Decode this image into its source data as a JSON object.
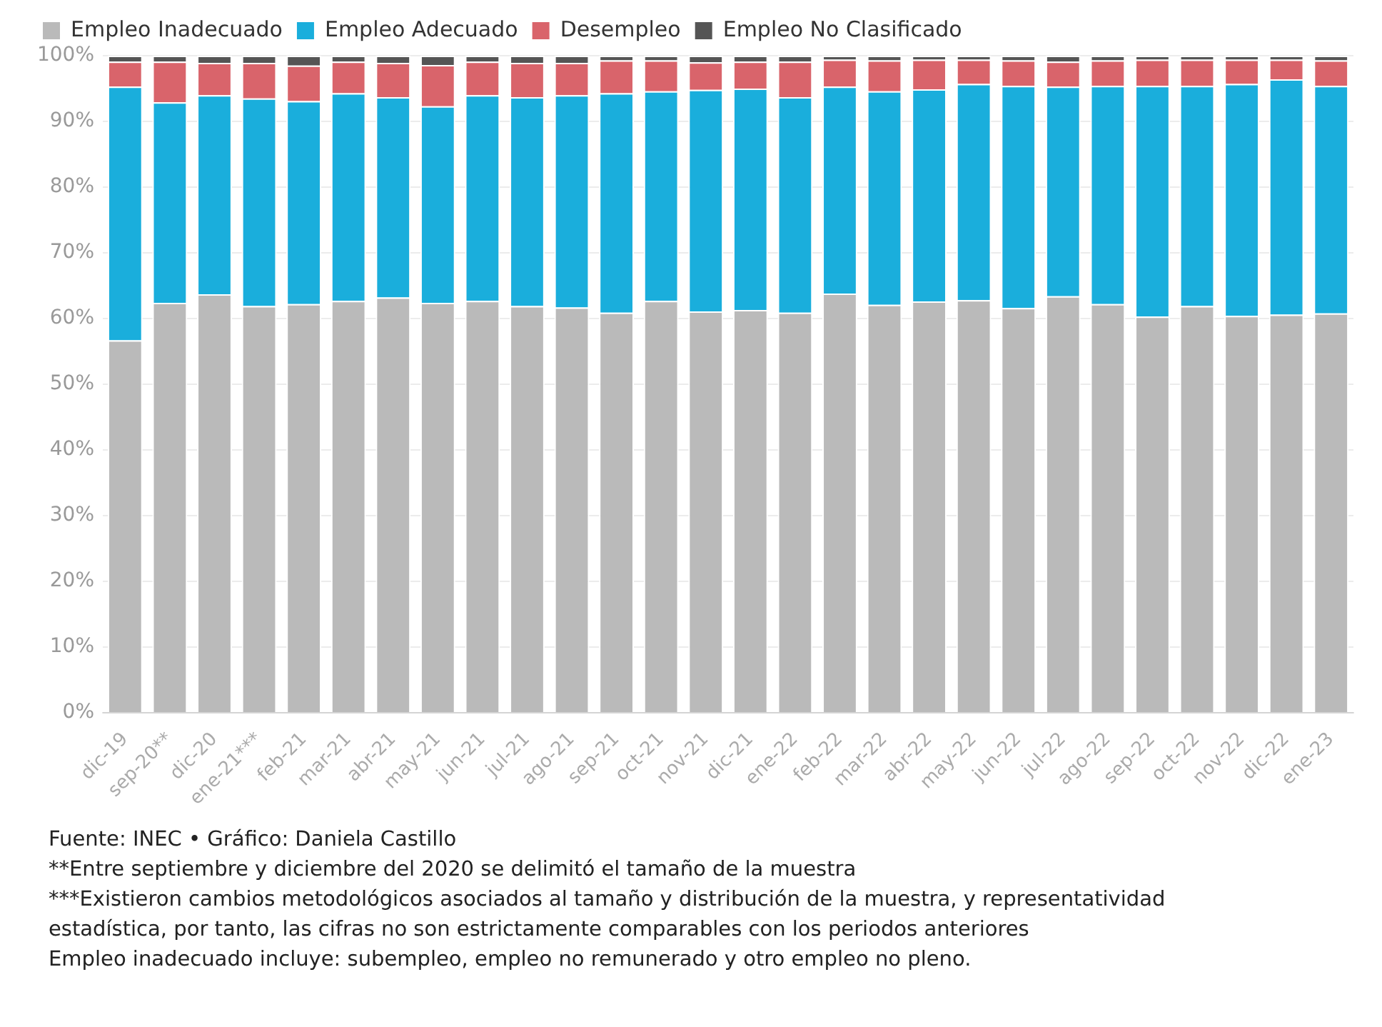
{
  "chart_data": {
    "type": "bar",
    "stacked": true,
    "legend": "top left",
    "grid": "y",
    "categories": [
      "dic-19",
      "sep-20**",
      "dic-20",
      "ene-21***",
      "feb-21",
      "mar-21",
      "abr-21",
      "may-21",
      "jun-21",
      "jul-21",
      "ago-21",
      "sep-21",
      "oct-21",
      "nov-21",
      "dic-21",
      "ene-22",
      "feb-22",
      "mar-22",
      "abr-22",
      "may-22",
      "jun-22",
      "jul-22",
      "ago-22",
      "sep-22",
      "oct-22",
      "nov-22",
      "dic-22",
      "ene-23"
    ],
    "ylim": [
      0,
      100
    ],
    "yticks": [
      {
        "value": 0,
        "label": "0%"
      },
      {
        "value": 10,
        "label": "10%"
      },
      {
        "value": 20,
        "label": "20%"
      },
      {
        "value": 30,
        "label": "30%"
      },
      {
        "value": 40,
        "label": "40%"
      },
      {
        "value": 50,
        "label": "50%"
      },
      {
        "value": 60,
        "label": "60%"
      },
      {
        "value": 70,
        "label": "70%"
      },
      {
        "value": 80,
        "label": "80%"
      },
      {
        "value": 90,
        "label": "90%"
      },
      {
        "value": 100,
        "label": "100%"
      }
    ],
    "series": [
      {
        "name": "Empleo Inadecuado",
        "color": "#bababa",
        "values": [
          56.7,
          62.4,
          63.7,
          61.9,
          62.2,
          62.7,
          63.2,
          62.4,
          62.7,
          61.9,
          61.7,
          60.9,
          62.7,
          61.1,
          61.3,
          60.9,
          63.8,
          62.1,
          62.6,
          62.8,
          61.6,
          63.4,
          62.2,
          60.3,
          61.9,
          60.4,
          60.6,
          60.8
        ]
      },
      {
        "name": "Empleo Adecuado",
        "color": "#1aaedc",
        "values": [
          38.6,
          30.5,
          30.3,
          31.6,
          30.9,
          31.6,
          30.5,
          29.9,
          31.3,
          31.8,
          32.3,
          33.4,
          31.9,
          33.7,
          33.7,
          32.8,
          31.5,
          32.5,
          32.3,
          32.9,
          33.8,
          31.9,
          33.2,
          35.1,
          33.5,
          35.3,
          35.8,
          34.6
        ]
      },
      {
        "name": "Desempleo",
        "color": "#d9646b",
        "values": [
          3.8,
          6.2,
          4.9,
          5.4,
          5.4,
          4.8,
          5.2,
          6.3,
          5.1,
          5.2,
          4.9,
          5.0,
          4.7,
          4.2,
          4.1,
          5.4,
          4.1,
          4.7,
          4.5,
          3.7,
          3.9,
          3.8,
          3.9,
          4.0,
          4.0,
          3.7,
          3.0,
          3.9
        ]
      },
      {
        "name": "Empleo No Clasificado",
        "color": "#555555",
        "values": [
          0.9,
          0.9,
          1.1,
          1.1,
          1.5,
          0.9,
          1.1,
          1.4,
          0.9,
          1.1,
          1.1,
          0.7,
          0.7,
          1.0,
          0.9,
          0.9,
          0.6,
          0.7,
          0.6,
          0.6,
          0.7,
          0.9,
          0.7,
          0.6,
          0.6,
          0.6,
          0.6,
          0.7
        ]
      }
    ],
    "annotations": [
      "Fuente: INEC • Gráfico: Daniela Castillo",
      "**Entre septiembre y diciembre del 2020 se delimitó el tamaño de la muestra",
      "***Existieron cambios metodológicos asociados al tamaño y distribución de la muestra, y representatividad estadística, por tanto, las cifras no son estrictamente comparables con los periodos anteriores",
      "Empleo inadecuado incluye: subempleo, empleo no remunerado y otro empleo no pleno."
    ]
  }
}
